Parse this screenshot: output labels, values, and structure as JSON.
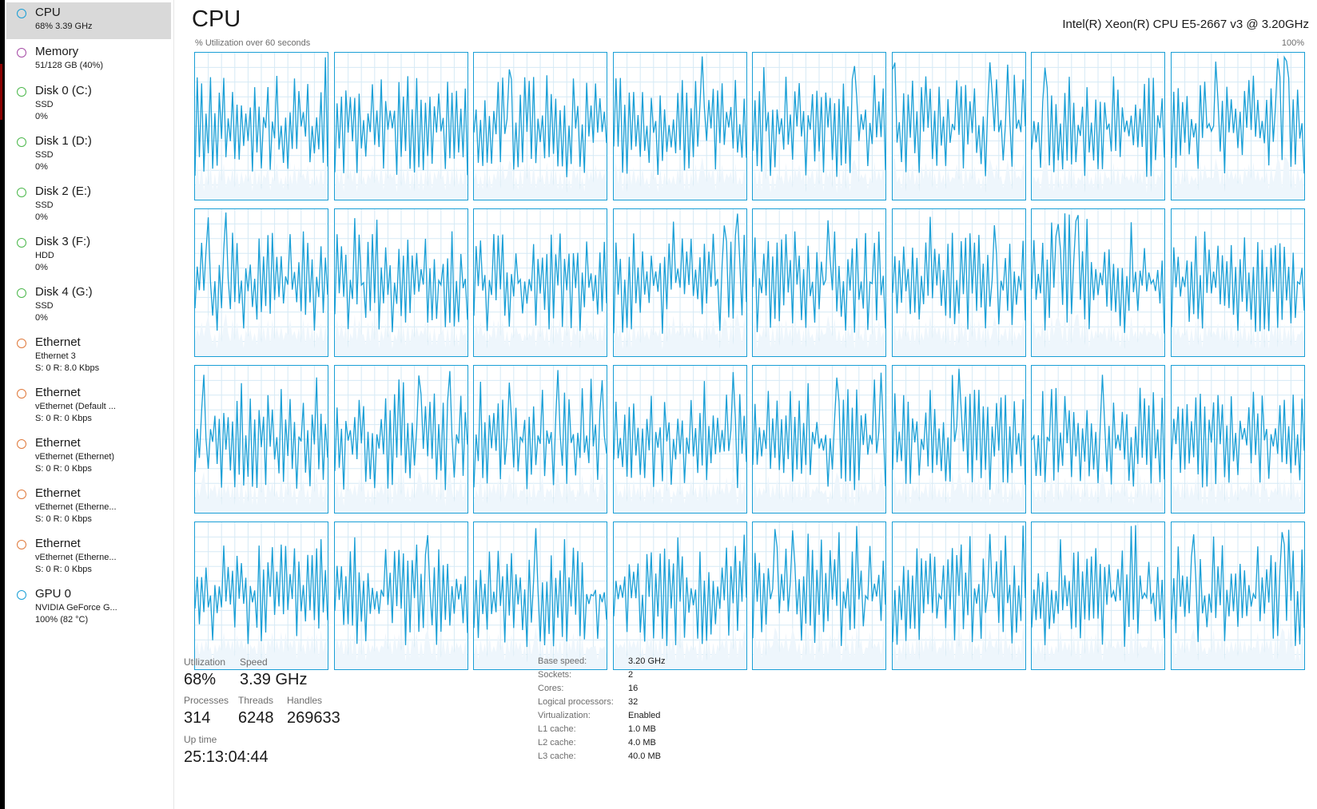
{
  "sidebar": {
    "items": [
      {
        "title": "CPU",
        "sub1": "68%  3.39 GHz",
        "sub2": "",
        "color": "#1a9fd6",
        "selected": true
      },
      {
        "title": "Memory",
        "sub1": "51/128 GB (40%)",
        "sub2": "",
        "color": "#a64ca6",
        "selected": false
      },
      {
        "title": "Disk 0 (C:)",
        "sub1": "SSD",
        "sub2": "0%",
        "color": "#4cb84c",
        "selected": false
      },
      {
        "title": "Disk 1 (D:)",
        "sub1": "SSD",
        "sub2": "0%",
        "color": "#4cb84c",
        "selected": false
      },
      {
        "title": "Disk 2 (E:)",
        "sub1": "SSD",
        "sub2": "0%",
        "color": "#4cb84c",
        "selected": false
      },
      {
        "title": "Disk 3 (F:)",
        "sub1": "HDD",
        "sub2": "0%",
        "color": "#4cb84c",
        "selected": false
      },
      {
        "title": "Disk 4 (G:)",
        "sub1": "SSD",
        "sub2": "0%",
        "color": "#4cb84c",
        "selected": false
      },
      {
        "title": "Ethernet",
        "sub1": "Ethernet 3",
        "sub2": "S: 0  R: 8.0 Kbps",
        "color": "#e07a3c",
        "selected": false
      },
      {
        "title": "Ethernet",
        "sub1": "vEthernet (Default ...",
        "sub2": "S: 0  R: 0 Kbps",
        "color": "#e07a3c",
        "selected": false
      },
      {
        "title": "Ethernet",
        "sub1": "vEthernet (Ethernet)",
        "sub2": "S: 0  R: 0 Kbps",
        "color": "#e07a3c",
        "selected": false
      },
      {
        "title": "Ethernet",
        "sub1": "vEthernet (Etherne...",
        "sub2": "S: 0  R: 0 Kbps",
        "color": "#e07a3c",
        "selected": false
      },
      {
        "title": "Ethernet",
        "sub1": "vEthernet (Etherne...",
        "sub2": "S: 0  R: 0 Kbps",
        "color": "#e07a3c",
        "selected": false
      },
      {
        "title": "GPU 0",
        "sub1": "NVIDIA GeForce G...",
        "sub2": "100%  (82 °C)",
        "color": "#1a9fd6",
        "selected": false
      }
    ]
  },
  "header": {
    "title": "CPU",
    "cpu_model": "Intel(R) Xeon(R) CPU E5-2667 v3 @ 3.20GHz",
    "graph_caption": "% Utilization over 60 seconds",
    "graph_max": "100%"
  },
  "graphs": {
    "logical_processor_count": 32,
    "columns": 8,
    "rows": 4,
    "line_color": "#1a9fd6",
    "fill_color": "#eef6fc",
    "grid_color": "#d6eaf5"
  },
  "stats": {
    "utilization_label": "Utilization",
    "utilization_value": "68%",
    "speed_label": "Speed",
    "speed_value": "3.39 GHz",
    "processes_label": "Processes",
    "processes_value": "314",
    "threads_label": "Threads",
    "threads_value": "6248",
    "handles_label": "Handles",
    "handles_value": "269633",
    "uptime_label": "Up time",
    "uptime_value": "25:13:04:44"
  },
  "specs": [
    {
      "label": "Base speed:",
      "value": "3.20 GHz"
    },
    {
      "label": "Sockets:",
      "value": "2"
    },
    {
      "label": "Cores:",
      "value": "16"
    },
    {
      "label": "Logical processors:",
      "value": "32"
    },
    {
      "label": "Virtualization:",
      "value": "Enabled"
    },
    {
      "label": "L1 cache:",
      "value": "1.0 MB"
    },
    {
      "label": "L2 cache:",
      "value": "4.0 MB"
    },
    {
      "label": "L3 cache:",
      "value": "40.0 MB"
    }
  ]
}
